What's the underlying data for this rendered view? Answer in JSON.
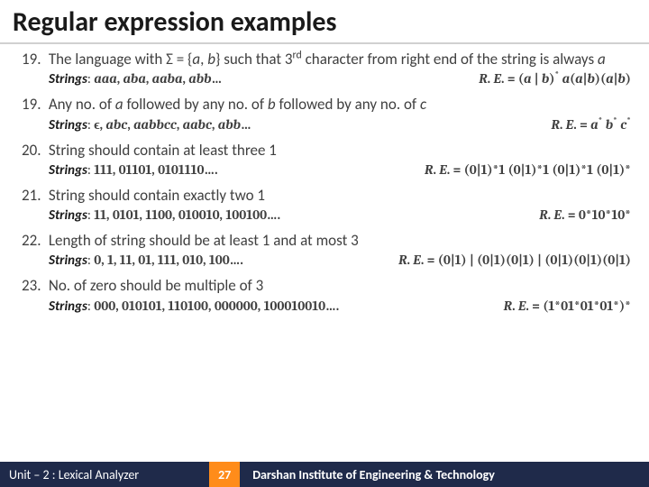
{
  "title": "Regular expression examples",
  "items": [
    {
      "num": "19.",
      "desc_html": "The language with Σ = {<i>a</i>, <i>b</i>} such that 3<sup>rd</sup> character from right end of the string is always <i>a</i>",
      "strings": "<i>aaa</i>, <i>aba</i>, <i>aaba</i>, <i>abb</i>…",
      "re": "<i>R</i>. <i>E</i>. = (<i>a</i> | <i>b</i>)<sup>*</sup> <i>a</i>(<i>a</i>|<i>b</i>)(<i>a</i>|<i>b</i>)"
    },
    {
      "num": "19.",
      "desc_html": "Any no. of <i>a</i> followed by any no. of <i>b</i> followed by any no. of <i>c</i>",
      "strings": "ϵ, <i>abc</i>, <i>aabbcc</i>, <i>aabc</i>, <i>abb</i>…",
      "re": "<i>R</i>. <i>E</i>. = <i>a</i><sup>*</sup> <i>b</i><sup>*</sup> <i>c</i><sup>*</sup>"
    },
    {
      "num": "20.",
      "desc_html": "String should contain at least three 1",
      "strings": "111, 01101, 0101110….",
      "re": "<i>R</i>. <i>E</i>. = (0|1)*1 (0|1)*1 (0|1)*1 (0|1)*"
    },
    {
      "num": "21.",
      "desc_html": "String should contain exactly two 1",
      "strings": "11, 0101, 1100, 010010, 100100….",
      "re": "<i>R</i>. <i>E</i>. = 0*10*10*"
    },
    {
      "num": "22.",
      "desc_html": "Length of string should be at least 1 and at most 3",
      "strings": "0, 1, 11, 01, 111, 010, 100….",
      "re": "<i>R</i>. <i>E</i>. = (0|1) | (0|1)(0|1) | (0|1)(0|1)(0|1)"
    },
    {
      "num": "23.",
      "desc_html": "No. of zero should be multiple of 3",
      "strings": "000, 010101, 110100, 000000, 100010010….",
      "re": "<i>R</i>. <i>E</i>. = (1*01*01*01*)*"
    }
  ],
  "footer": {
    "left": "Unit – 2  : Lexical Analyzer",
    "page": "27",
    "right": "Darshan Institute of Engineering & Technology"
  },
  "colors": {
    "footer_bg": "#1f2a4a",
    "page_bg": "#ff8c1a",
    "divider": "#d0d0d0"
  }
}
